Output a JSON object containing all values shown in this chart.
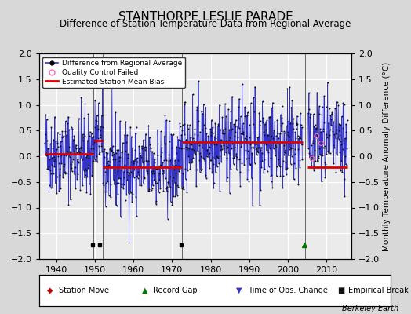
{
  "title": "STANTHORPE LESLIE PARADE",
  "subtitle": "Difference of Station Temperature Data from Regional Average",
  "ylabel": "Monthly Temperature Anomaly Difference (°C)",
  "xlim": [
    1935.5,
    2016.5
  ],
  "ylim": [
    -2,
    2
  ],
  "yticks": [
    -2,
    -1.5,
    -1,
    -0.5,
    0,
    0.5,
    1,
    1.5,
    2
  ],
  "xticks": [
    1940,
    1950,
    1960,
    1970,
    1980,
    1990,
    2000,
    2010
  ],
  "background_color": "#d8d8d8",
  "plot_bg_color": "#ebebeb",
  "grid_color": "#ffffff",
  "line_color": "#3333cc",
  "dot_color": "#111111",
  "bias_color": "#dd0000",
  "title_fontsize": 11,
  "subtitle_fontsize": 8.5,
  "tick_fontsize": 8,
  "ylabel_fontsize": 7.5,
  "watermark": "Berkeley Earth",
  "seed": 42,
  "segment_breaks": [
    1949.5,
    1952.0,
    1972.5,
    2004.5
  ],
  "segment_biases": [
    0.05,
    0.3,
    -0.22,
    0.27,
    0.27,
    -0.22
  ],
  "empirical_break_years": [
    1949.3,
    1951.3,
    1972.3
  ],
  "record_gap_years": [
    2004.3
  ],
  "qc_fail_years": [
    2006.3,
    2007.5,
    2008.7
  ],
  "vertical_lines": [
    1949.5,
    1952.0,
    1972.5,
    2004.5
  ],
  "start_year": 1937.0,
  "end_year": 2015.5,
  "gap_start": 2003.8,
  "gap_end": 2005.2
}
